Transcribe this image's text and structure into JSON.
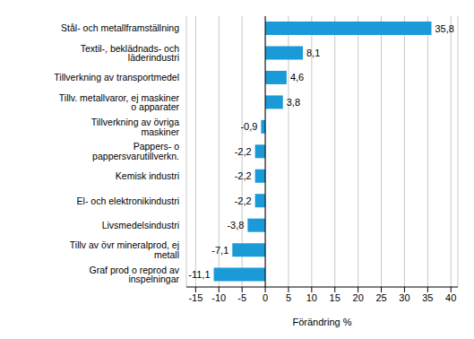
{
  "chart_data": {
    "type": "bar",
    "orientation": "horizontal",
    "x_label": "Förändring %",
    "categories": [
      "Stål- och metallframställning",
      "Textil-, beklädnads- och läderindustri",
      "Tillverkning av transportmedel",
      "Tillv. metallvaror, ej maskiner o apparater",
      "Tillverkning av övriga maskiner",
      "Pappers- o pappersvarutillverkn.",
      "Kemisk industri",
      "El- och elektronikindustri",
      "Livsmedelsindustri",
      "Tillv av övr mineralprod, ej metall",
      "Graf prod o reprod av inspelningar"
    ],
    "values": [
      35.8,
      8.1,
      4.6,
      3.8,
      -0.9,
      -2.2,
      -2.2,
      -2.2,
      -3.8,
      -7.1,
      -11.1
    ],
    "value_labels": [
      "35,8",
      "8,1",
      "4,6",
      "3,8",
      "-0,9",
      "-2,2",
      "-2,2",
      "-2,2",
      "-3,8",
      "-7,1",
      "-11,1"
    ],
    "color": "#1a9ad6",
    "xlim": [
      -17,
      41.5
    ],
    "xticks": [
      -15,
      -10,
      -5,
      0,
      5,
      10,
      15,
      20,
      25,
      30,
      35,
      40
    ],
    "grid": true,
    "data_labels": true
  }
}
